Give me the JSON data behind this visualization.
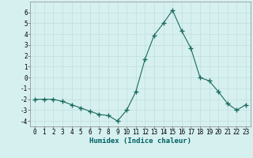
{
  "x": [
    0,
    1,
    2,
    3,
    4,
    5,
    6,
    7,
    8,
    9,
    10,
    11,
    12,
    13,
    14,
    15,
    16,
    17,
    18,
    19,
    20,
    21,
    22,
    23
  ],
  "y": [
    -2,
    -2,
    -2,
    -2.2,
    -2.5,
    -2.8,
    -3.1,
    -3.4,
    -3.5,
    -4.0,
    -3.0,
    -1.3,
    1.7,
    3.9,
    5.0,
    6.2,
    4.3,
    2.7,
    0.0,
    -0.3,
    -1.3,
    -2.4,
    -3.0,
    -2.5
  ],
  "line_color": "#1a6b5e",
  "marker": "+",
  "marker_size": 4,
  "bg_color": "#d6f0f0",
  "grid_color": "#c0dedd",
  "xlabel": "Humidex (Indice chaleur)",
  "ylim": [
    -4.5,
    7
  ],
  "xlim": [
    -0.5,
    23.5
  ],
  "yticks": [
    -4,
    -3,
    -2,
    -1,
    0,
    1,
    2,
    3,
    4,
    5,
    6
  ],
  "xticks": [
    0,
    1,
    2,
    3,
    4,
    5,
    6,
    7,
    8,
    9,
    10,
    11,
    12,
    13,
    14,
    15,
    16,
    17,
    18,
    19,
    20,
    21,
    22,
    23
  ],
  "xlabel_fontsize": 6.5,
  "tick_fontsize": 5.5,
  "linewidth": 0.8,
  "marker_lw": 1.0
}
